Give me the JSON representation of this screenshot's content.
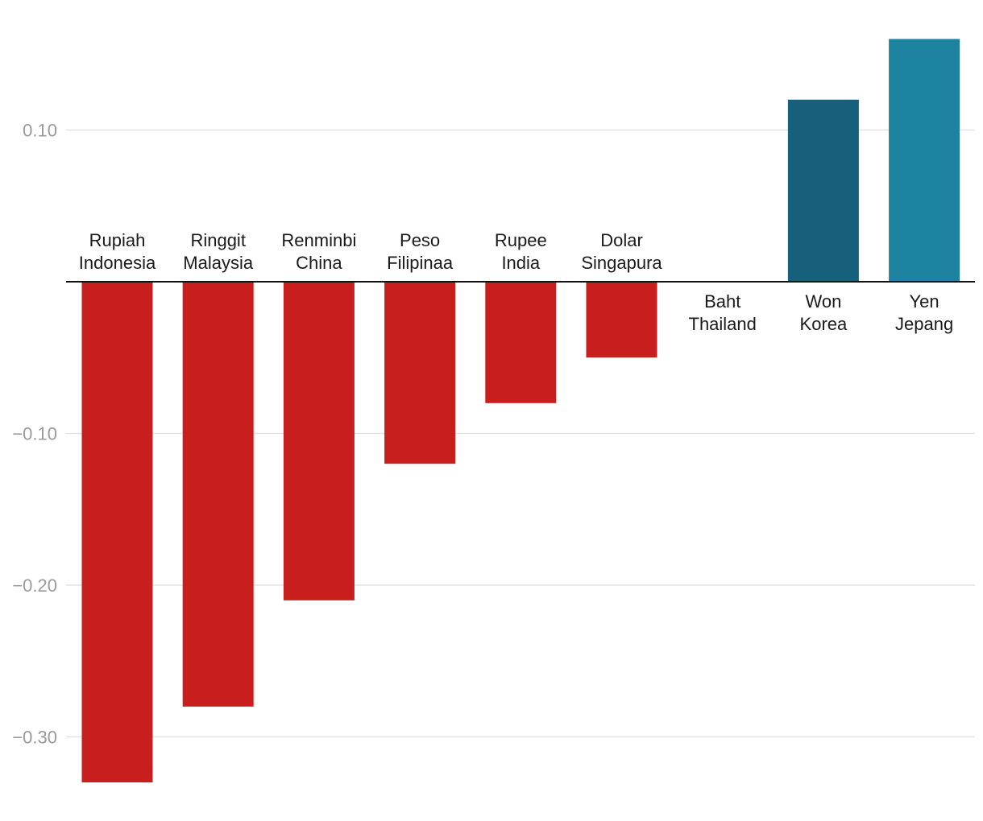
{
  "chart_data": {
    "type": "bar",
    "categories": [
      [
        "Rupiah",
        "Indonesia"
      ],
      [
        "Ringgit",
        "Malaysia"
      ],
      [
        "Renminbi",
        "China"
      ],
      [
        "Peso",
        "Filipinaa"
      ],
      [
        "Rupee",
        "India"
      ],
      [
        "Dolar",
        "Singapura"
      ],
      [
        "Baht",
        "Thailand"
      ],
      [
        "Won",
        "Korea"
      ],
      [
        "Yen",
        "Jepang"
      ]
    ],
    "values": [
      -0.33,
      -0.28,
      -0.21,
      -0.12,
      -0.08,
      -0.05,
      0.0,
      0.12,
      0.16
    ],
    "colors": [
      "#c91e1e",
      "#c91e1e",
      "#c91e1e",
      "#c91e1e",
      "#c91e1e",
      "#c91e1e",
      "#c91e1e",
      "#17607b",
      "#1e83a1"
    ],
    "yticks": [
      0.1,
      -0.1,
      -0.2,
      -0.3
    ],
    "ytick_labels": [
      "0.10",
      "−0.10",
      "−0.20",
      "−0.30"
    ],
    "ylim": [
      -0.33,
      0.16
    ],
    "grid": true,
    "title": "",
    "xlabel": "",
    "ylabel": ""
  }
}
